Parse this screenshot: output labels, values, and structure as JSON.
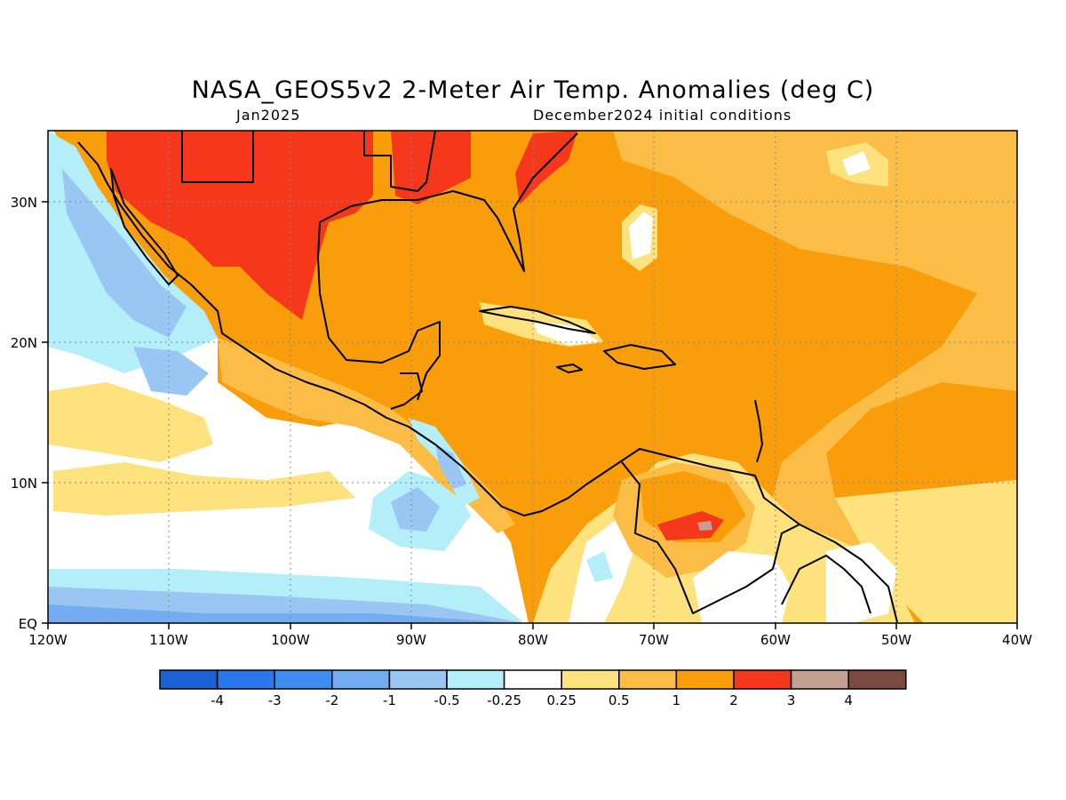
{
  "header": {
    "title": "NASA_GEOS5v2 2-Meter Air Temp. Anomalies (deg C)",
    "month": "Jan2025",
    "init": "December2024 initial conditions"
  },
  "axes": {
    "x_ticks": [
      "120W",
      "110W",
      "100W",
      "90W",
      "80W",
      "70W",
      "60W",
      "50W",
      "40W"
    ],
    "y_ticks": [
      "EQ",
      "10N",
      "20N",
      "30N"
    ],
    "lon_range": [
      -120,
      -40
    ],
    "lat_range": [
      0,
      35
    ]
  },
  "colorbar": {
    "colors": [
      "#1a62d6",
      "#2a76ec",
      "#3f8cf0",
      "#74acf2",
      "#9ac6f4",
      "#b4eef8",
      "#ffffff",
      "#fde27e",
      "#fbbd45",
      "#f99d0b",
      "#f5381c",
      "#c4a093",
      "#7a4a40"
    ],
    "labels": [
      "-4",
      "-3",
      "-2",
      "-1",
      "-0.5",
      "-0.25",
      "0.25",
      "0.5",
      "1",
      "2",
      "3",
      "4"
    ]
  }
}
